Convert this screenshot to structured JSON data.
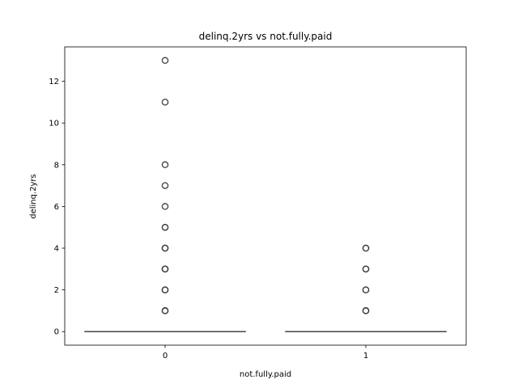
{
  "chart_data": {
    "type": "box",
    "title": "delinq.2yrs vs not.fully.paid",
    "xlabel": "not.fully.paid",
    "ylabel": "delinq.2yrs",
    "categories": [
      "0",
      "1"
    ],
    "ylim": [
      -0.65,
      13.65
    ],
    "yticks": [
      0,
      2,
      4,
      6,
      8,
      10,
      12
    ],
    "grid": false,
    "boxes": [
      {
        "category": "0",
        "min": 0,
        "q1": 0,
        "median": 0,
        "q3": 0,
        "max": 0,
        "outliers": [
          1,
          1,
          1,
          2,
          2,
          2,
          3,
          3,
          3,
          4,
          4,
          4,
          5,
          5,
          6,
          7,
          8,
          11,
          13
        ]
      },
      {
        "category": "1",
        "min": 0,
        "q1": 0,
        "median": 0,
        "q3": 0,
        "max": 0,
        "outliers": [
          1,
          1,
          1,
          2,
          2,
          3,
          3,
          4,
          4
        ]
      }
    ]
  }
}
